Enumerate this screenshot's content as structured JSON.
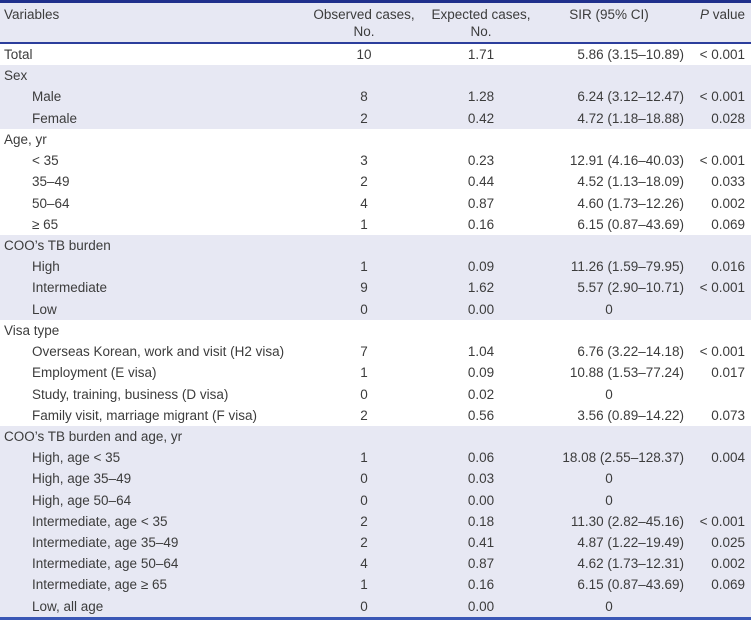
{
  "colors": {
    "band_background": "#e7e8f3",
    "border_top": "#20308c",
    "header_rule": "#2c3e9c",
    "border_bottom": "#3a57b5",
    "text": "#3c3c3c"
  },
  "header": {
    "variables": "Variables",
    "observed_line1": "Observed cases,",
    "observed_line2": "No.",
    "expected_line1": "Expected cases,",
    "expected_line2": "No.",
    "sir": "SIR (95% CI)",
    "p_italic": "P",
    "p_rest": " value"
  },
  "rows": [
    {
      "label": "Total",
      "observed": "10",
      "expected": "1.71",
      "sir": "5.86 (3.15–10.89)",
      "p": "< 0.001"
    },
    {
      "label": "Sex",
      "observed": "",
      "expected": "",
      "sir": "",
      "p": ""
    },
    {
      "label": "Male",
      "observed": "8",
      "expected": "1.28",
      "sir": "6.24 (3.12–12.47)",
      "p": "< 0.001"
    },
    {
      "label": "Female",
      "observed": "2",
      "expected": "0.42",
      "sir": "4.72 (1.18–18.88)",
      "p": "0.028"
    },
    {
      "label": "Age, yr",
      "observed": "",
      "expected": "",
      "sir": "",
      "p": ""
    },
    {
      "label": "< 35",
      "observed": "3",
      "expected": "0.23",
      "sir": "12.91 (4.16–40.03)",
      "p": "< 0.001"
    },
    {
      "label": "35–49",
      "observed": "2",
      "expected": "0.44",
      "sir": "4.52 (1.13–18.09)",
      "p": "0.033"
    },
    {
      "label": "50–64",
      "observed": "4",
      "expected": "0.87",
      "sir": "4.60 (1.73–12.26)",
      "p": "0.002"
    },
    {
      "label": "≥ 65",
      "observed": "1",
      "expected": "0.16",
      "sir": "6.15 (0.87–43.69)",
      "p": "0.069"
    },
    {
      "label": "COO’s TB burden",
      "observed": "",
      "expected": "",
      "sir": "",
      "p": ""
    },
    {
      "label": "High",
      "observed": "1",
      "expected": "0.09",
      "sir": "11.26 (1.59–79.95)",
      "p": "0.016"
    },
    {
      "label": "Intermediate",
      "observed": "9",
      "expected": "1.62",
      "sir": "5.57 (2.90–10.71)",
      "p": "< 0.001"
    },
    {
      "label": "Low",
      "observed": "0",
      "expected": "0.00",
      "sir": "0",
      "p": ""
    },
    {
      "label": "Visa type",
      "observed": "",
      "expected": "",
      "sir": "",
      "p": ""
    },
    {
      "label": "Overseas Korean, work and visit (H2 visa)",
      "observed": "7",
      "expected": "1.04",
      "sir": "6.76 (3.22–14.18)",
      "p": "< 0.001"
    },
    {
      "label": "Employment (E visa)",
      "observed": "1",
      "expected": "0.09",
      "sir": "10.88 (1.53–77.24)",
      "p": "0.017"
    },
    {
      "label": "Study, training, business (D visa)",
      "observed": "0",
      "expected": "0.02",
      "sir": "0",
      "p": ""
    },
    {
      "label": "Family visit, marriage migrant (F visa)",
      "observed": "2",
      "expected": "0.56",
      "sir": "3.56 (0.89–14.22)",
      "p": "0.073"
    },
    {
      "label": "COO’s TB burden and age, yr",
      "observed": "",
      "expected": "",
      "sir": "",
      "p": ""
    },
    {
      "label": "High, age < 35",
      "observed": "1",
      "expected": "0.06",
      "sir": "18.08 (2.55–128.37)",
      "p": "0.004"
    },
    {
      "label": "High, age 35–49",
      "observed": "0",
      "expected": "0.03",
      "sir": "0",
      "p": ""
    },
    {
      "label": "High, age 50–64",
      "observed": "0",
      "expected": "0.00",
      "sir": "0",
      "p": ""
    },
    {
      "label": "Intermediate, age < 35",
      "observed": "2",
      "expected": "0.18",
      "sir": "11.30 (2.82–45.16)",
      "p": "< 0.001"
    },
    {
      "label": "Intermediate, age 35–49",
      "observed": "2",
      "expected": "0.41",
      "sir": "4.87 (1.22–19.49)",
      "p": "0.025"
    },
    {
      "label": "Intermediate, age 50–64",
      "observed": "4",
      "expected": "0.87",
      "sir": "4.62 (1.73–12.31)",
      "p": "0.002"
    },
    {
      "label": "Intermediate, age ≥ 65",
      "observed": "1",
      "expected": "0.16",
      "sir": "6.15 (0.87–43.69)",
      "p": "0.069"
    },
    {
      "label": "Low, all age",
      "observed": "0",
      "expected": "0.00",
      "sir": "0",
      "p": ""
    }
  ]
}
